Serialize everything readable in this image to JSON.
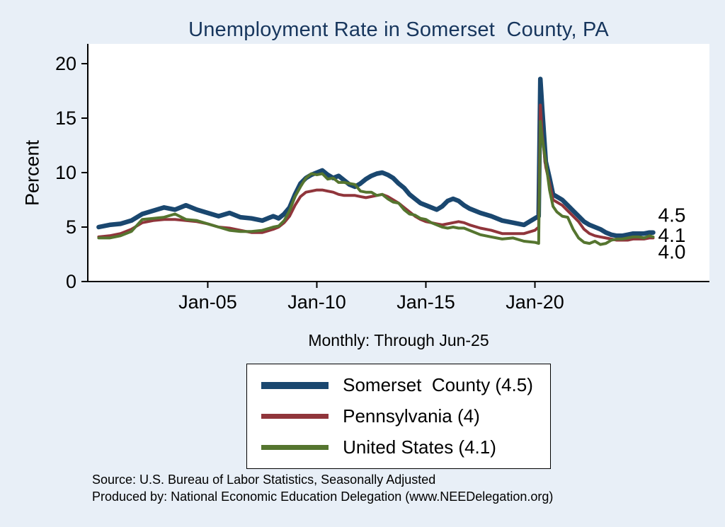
{
  "page": {
    "background": "#e8eff7"
  },
  "chart_data": {
    "type": "line",
    "title": "Unemployment Rate in Somerset  County, PA",
    "subtitle": "Monthly: Through Jun-25",
    "xlabel": "",
    "ylabel": "Percent",
    "ylim": [
      0,
      20
    ],
    "xlim": [
      1999.5,
      2028
    ],
    "grid": false,
    "legend_position": "bottom",
    "x_unit": "decimal year (monthly data)",
    "y_ticks": [
      0,
      5,
      10,
      15,
      20
    ],
    "x_ticks": [
      {
        "value": 2005,
        "label": "Jan-05"
      },
      {
        "value": 2010,
        "label": "Jan-10"
      },
      {
        "value": 2015,
        "label": "Jan-15"
      },
      {
        "value": 2020,
        "label": "Jan-20"
      }
    ],
    "x": [
      2000.0,
      2000.5,
      2001.0,
      2001.5,
      2002.0,
      2002.5,
      2003.0,
      2003.5,
      2004.0,
      2004.5,
      2005.0,
      2005.5,
      2006.0,
      2006.5,
      2007.0,
      2007.5,
      2008.0,
      2008.25,
      2008.5,
      2008.75,
      2009.0,
      2009.25,
      2009.5,
      2009.75,
      2010.0,
      2010.25,
      2010.5,
      2010.75,
      2011.0,
      2011.25,
      2011.5,
      2011.75,
      2012.0,
      2012.25,
      2012.5,
      2012.75,
      2013.0,
      2013.25,
      2013.5,
      2013.75,
      2014.0,
      2014.25,
      2014.5,
      2014.75,
      2015.0,
      2015.25,
      2015.5,
      2015.75,
      2016.0,
      2016.25,
      2016.5,
      2016.75,
      2017.0,
      2017.5,
      2018.0,
      2018.5,
      2019.0,
      2019.5,
      2020.0,
      2020.17,
      2020.25,
      2020.33,
      2020.5,
      2020.67,
      2020.83,
      2021.0,
      2021.25,
      2021.5,
      2021.75,
      2022.0,
      2022.25,
      2022.5,
      2022.75,
      2023.0,
      2023.25,
      2023.5,
      2023.75,
      2024.0,
      2024.25,
      2024.5,
      2024.75,
      2025.0,
      2025.25,
      2025.42
    ],
    "series": [
      {
        "name": "Somerset  County (4.5)",
        "color": "#1a476f",
        "line_width": 6.5,
        "end_label": "4.5",
        "values": [
          5.0,
          5.2,
          5.3,
          5.6,
          6.2,
          6.5,
          6.8,
          6.6,
          7.0,
          6.6,
          6.3,
          6.0,
          6.3,
          5.9,
          5.8,
          5.6,
          6.0,
          5.8,
          6.2,
          6.8,
          8.0,
          9.0,
          9.5,
          9.8,
          10.0,
          10.2,
          9.8,
          9.5,
          9.7,
          9.3,
          8.9,
          8.7,
          9.0,
          9.4,
          9.7,
          9.9,
          10.0,
          9.8,
          9.5,
          9.0,
          8.6,
          8.0,
          7.6,
          7.2,
          7.0,
          6.8,
          6.6,
          6.9,
          7.4,
          7.6,
          7.4,
          7.0,
          6.7,
          6.3,
          6.0,
          5.6,
          5.4,
          5.2,
          5.8,
          6.0,
          18.6,
          16.0,
          11.0,
          9.5,
          8.0,
          7.8,
          7.5,
          7.0,
          6.5,
          6.0,
          5.5,
          5.2,
          5.0,
          4.8,
          4.5,
          4.3,
          4.2,
          4.2,
          4.3,
          4.4,
          4.4,
          4.4,
          4.5,
          4.5
        ]
      },
      {
        "name": "Pennsylvania (4)",
        "color": "#90353b",
        "line_width": 4,
        "end_label": "4.0",
        "values": [
          4.1,
          4.2,
          4.4,
          4.8,
          5.4,
          5.6,
          5.7,
          5.7,
          5.6,
          5.5,
          5.3,
          5.0,
          4.9,
          4.7,
          4.5,
          4.5,
          4.8,
          5.0,
          5.4,
          6.0,
          7.0,
          7.8,
          8.2,
          8.3,
          8.4,
          8.4,
          8.3,
          8.2,
          8.0,
          7.9,
          7.9,
          7.9,
          7.8,
          7.7,
          7.8,
          7.9,
          8.0,
          7.8,
          7.5,
          7.2,
          6.8,
          6.4,
          6.0,
          5.7,
          5.5,
          5.4,
          5.3,
          5.2,
          5.3,
          5.4,
          5.5,
          5.4,
          5.2,
          4.9,
          4.7,
          4.4,
          4.4,
          4.4,
          4.7,
          5.0,
          16.2,
          13.5,
          10.5,
          9.0,
          7.5,
          7.3,
          7.0,
          6.5,
          6.0,
          5.5,
          4.8,
          4.4,
          4.2,
          4.1,
          4.0,
          3.9,
          3.8,
          3.8,
          3.8,
          3.9,
          3.9,
          3.9,
          4.0,
          4.0
        ]
      },
      {
        "name": "United States (4.1)",
        "color": "#55752f",
        "line_width": 4,
        "end_label": "4.1",
        "values": [
          4.0,
          4.0,
          4.2,
          4.6,
          5.7,
          5.8,
          5.9,
          6.2,
          5.7,
          5.6,
          5.3,
          5.0,
          4.7,
          4.6,
          4.6,
          4.7,
          5.0,
          5.1,
          5.6,
          6.5,
          7.8,
          8.7,
          9.5,
          9.9,
          9.8,
          9.9,
          9.4,
          9.5,
          9.1,
          9.1,
          9.0,
          8.9,
          8.3,
          8.2,
          8.2,
          7.9,
          8.0,
          7.6,
          7.3,
          7.2,
          6.6,
          6.2,
          6.1,
          5.8,
          5.7,
          5.4,
          5.2,
          5.0,
          4.9,
          5.0,
          4.9,
          4.9,
          4.7,
          4.3,
          4.1,
          3.9,
          4.0,
          3.7,
          3.6,
          3.5,
          14.7,
          13.2,
          11.0,
          8.4,
          6.9,
          6.4,
          6.0,
          5.9,
          4.8,
          4.0,
          3.6,
          3.5,
          3.7,
          3.4,
          3.5,
          3.8,
          3.9,
          3.9,
          4.0,
          4.1,
          4.1,
          4.0,
          4.2,
          4.1
        ]
      }
    ]
  },
  "notes": [
    "Source: U.S. Bureau of Labor Statistics, Seasonally Adjusted",
    "Produced by: National Economic Education Delegation (www.NEEDelegation.org)"
  ]
}
